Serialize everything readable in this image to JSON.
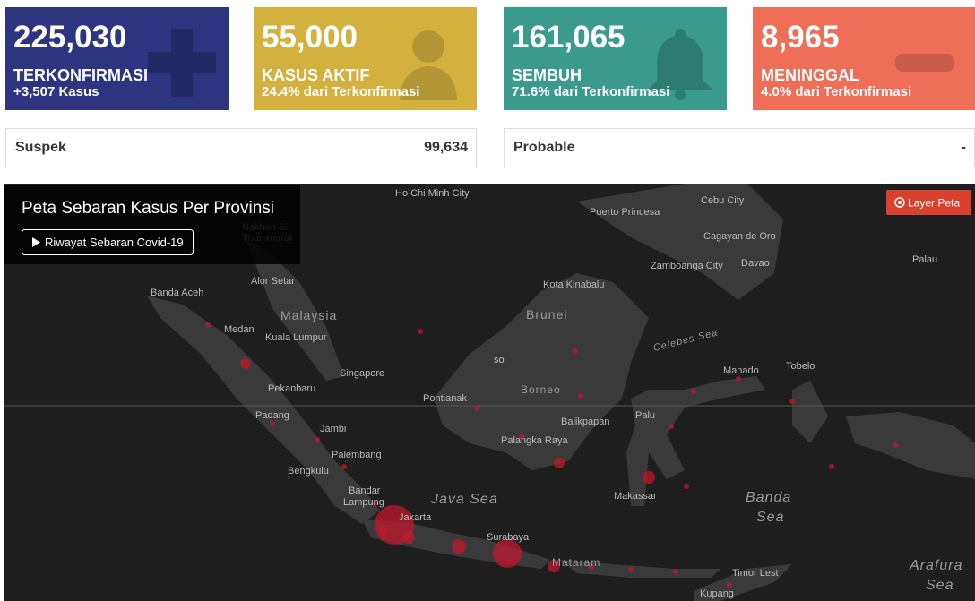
{
  "cards": [
    {
      "value": "225,030",
      "label": "TERKONFIRMASI",
      "sub": "+3,507 Kasus"
    },
    {
      "value": "55,000",
      "label": "KASUS AKTIF",
      "sub": "24.4% dari Terkonfirmasi"
    },
    {
      "value": "161,065",
      "label": "SEMBUH",
      "sub": "71.6% dari Terkonfirmasi"
    },
    {
      "value": "8,965",
      "label": "MENINGGAL",
      "sub": "4.0% dari Terkonfirmasi"
    }
  ],
  "summary": [
    {
      "label": "Suspek",
      "value": "99,634"
    },
    {
      "label": "Probable",
      "value": "-"
    }
  ],
  "map": {
    "title": "Peta Sebaran Kasus Per Provinsi",
    "history_button": "Riwayat Sebaran Covid-19",
    "layer_button": "Layer Peta",
    "places": [
      "Ho Chi Minh City",
      "Nakhon Si",
      "Thammarat",
      "Puerto Princesa",
      "Cebu City",
      "Cagayan de Oro",
      "Davao",
      "Zamboanga City",
      "Palau",
      "Banda Aceh",
      "Alor Setar",
      "Kota Kinabalu",
      "Malaysia",
      "Brunei",
      "Medan",
      "Kuala Lumpur",
      "Celebes Sea",
      "Singapore",
      "Manado",
      "Tobelo",
      "Pekanbaru",
      "Borneo",
      "Pontianak",
      "Padang",
      "Palu",
      "Balikpapan",
      "Jambi",
      "Palangka Raya",
      "Palembang",
      "Bengkulu",
      "Bandar",
      "Lampung",
      "Java Sea",
      "Makassar",
      "Banda",
      "Sea",
      "Jakarta",
      "Surabaya",
      "Mataram",
      "Timor Lest",
      "Arafura",
      "Sea",
      "Kupang",
      "so"
    ]
  }
}
